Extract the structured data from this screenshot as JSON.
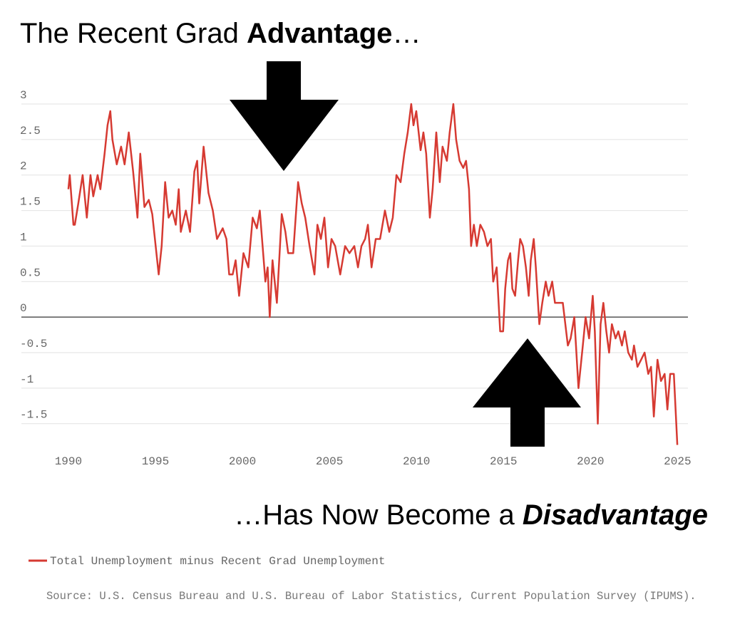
{
  "chart_data": {
    "type": "line",
    "title": [
      "The Recent Grad ",
      "Advantage",
      "…"
    ],
    "annotation": [
      "…Has Now Become a ",
      "Disadvantage"
    ],
    "source": "Source: U.S. Census Bureau and U.S. Bureau of Labor Statistics, Current Population Survey (IPUMS).",
    "xlim": [
      1987.3,
      2025.6
    ],
    "xticks": [
      1990,
      1995,
      2000,
      2005,
      2010,
      2015,
      2020,
      2025
    ],
    "ylim": [
      -1.8,
      3
    ],
    "yticks": [
      3,
      2.5,
      2,
      1.5,
      1,
      0.5,
      0,
      -0.5,
      -1,
      -1.5
    ],
    "grid": true,
    "x": [
      1990.0,
      1990.08,
      1990.29,
      1990.37,
      1990.57,
      1990.82,
      1991.06,
      1991.27,
      1991.43,
      1991.68,
      1991.84,
      1992.08,
      1992.25,
      1992.41,
      1992.53,
      1992.78,
      1993.03,
      1993.23,
      1993.47,
      1993.72,
      1993.97,
      1994.13,
      1994.37,
      1994.62,
      1994.82,
      1995.19,
      1995.36,
      1995.56,
      1995.76,
      1995.97,
      1996.17,
      1996.34,
      1996.46,
      1996.75,
      1996.99,
      1997.24,
      1997.4,
      1997.52,
      1997.77,
      1998.05,
      1998.3,
      1998.54,
      1998.87,
      1999.08,
      1999.24,
      1999.44,
      1999.61,
      1999.81,
      2000.06,
      2000.34,
      2000.59,
      2000.83,
      2001.0,
      2001.16,
      2001.32,
      2001.45,
      2001.57,
      2001.73,
      2001.98,
      2002.26,
      2002.47,
      2002.63,
      2002.92,
      2003.2,
      2003.41,
      2003.61,
      2003.86,
      2004.14,
      2004.31,
      2004.51,
      2004.71,
      2004.92,
      2005.12,
      2005.33,
      2005.62,
      2005.9,
      2006.15,
      2006.43,
      2006.64,
      2006.84,
      2007.05,
      2007.21,
      2007.42,
      2007.66,
      2007.91,
      2008.19,
      2008.44,
      2008.64,
      2008.85,
      2009.09,
      2009.3,
      2009.5,
      2009.7,
      2009.83,
      2009.99,
      2010.24,
      2010.4,
      2010.56,
      2010.77,
      2010.93,
      2011.14,
      2011.34,
      2011.5,
      2011.75,
      2011.91,
      2012.12,
      2012.28,
      2012.48,
      2012.69,
      2012.85,
      2013.02,
      2013.14,
      2013.3,
      2013.47,
      2013.67,
      2013.88,
      2014.08,
      2014.28,
      2014.41,
      2014.61,
      2014.81,
      2014.98,
      2015.1,
      2015.26,
      2015.39,
      2015.51,
      2015.67,
      2015.84,
      2015.96,
      2016.12,
      2016.29,
      2016.45,
      2016.57,
      2016.74,
      2016.86,
      2017.06,
      2017.23,
      2017.43,
      2017.59,
      2017.8,
      2017.96,
      2018.17,
      2018.41,
      2018.7,
      2018.86,
      2019.07,
      2019.31,
      2019.56,
      2019.72,
      2019.92,
      2020.13,
      2020.25,
      2020.42,
      2020.58,
      2020.74,
      2020.91,
      2021.07,
      2021.23,
      2021.44,
      2021.6,
      2021.81,
      2021.97,
      2022.17,
      2022.38,
      2022.5,
      2022.7,
      2022.91,
      2023.11,
      2023.32,
      2023.48,
      2023.64,
      2023.85,
      2024.05,
      2024.26,
      2024.42,
      2024.58,
      2024.79,
      2024.99
    ],
    "series": [
      {
        "name": "Total Unemployment minus Recent Grad Unemployment",
        "color": "#d63a32",
        "values": [
          1.8,
          2.0,
          1.3,
          1.3,
          1.6,
          2.0,
          1.4,
          2.0,
          1.7,
          2.0,
          1.8,
          2.3,
          2.7,
          2.9,
          2.5,
          2.15,
          2.4,
          2.15,
          2.6,
          2.05,
          1.4,
          2.3,
          1.55,
          1.65,
          1.45,
          0.6,
          1.0,
          1.9,
          1.4,
          1.5,
          1.3,
          1.8,
          1.2,
          1.5,
          1.2,
          2.05,
          2.2,
          1.6,
          2.4,
          1.75,
          1.5,
          1.1,
          1.25,
          1.1,
          0.6,
          0.6,
          0.8,
          0.3,
          0.9,
          0.7,
          1.4,
          1.25,
          1.5,
          1.0,
          0.5,
          0.7,
          0.0,
          0.8,
          0.2,
          1.45,
          1.2,
          0.9,
          0.9,
          1.9,
          1.6,
          1.4,
          1.0,
          0.6,
          1.3,
          1.1,
          1.4,
          0.7,
          1.1,
          1.0,
          0.6,
          1.0,
          0.9,
          1.0,
          0.7,
          1.0,
          1.1,
          1.3,
          0.7,
          1.1,
          1.1,
          1.5,
          1.2,
          1.4,
          2.0,
          1.9,
          2.3,
          2.6,
          3.0,
          2.7,
          2.9,
          2.35,
          2.6,
          2.3,
          1.4,
          1.8,
          2.6,
          1.9,
          2.4,
          2.2,
          2.6,
          3.0,
          2.5,
          2.2,
          2.1,
          2.2,
          1.8,
          1.0,
          1.3,
          1.0,
          1.3,
          1.2,
          1.0,
          1.1,
          0.5,
          0.7,
          -0.2,
          -0.2,
          0.4,
          0.8,
          0.9,
          0.4,
          0.3,
          0.8,
          1.1,
          1.0,
          0.7,
          0.3,
          0.8,
          1.1,
          0.7,
          -0.1,
          0.2,
          0.5,
          0.3,
          0.5,
          0.2,
          0.2,
          0.2,
          -0.4,
          -0.3,
          0.0,
          -1.0,
          -0.4,
          0.0,
          -0.3,
          0.3,
          -0.2,
          -1.5,
          -0.1,
          0.2,
          -0.2,
          -0.5,
          -0.1,
          -0.3,
          -0.2,
          -0.4,
          -0.2,
          -0.5,
          -0.6,
          -0.4,
          -0.7,
          -0.6,
          -0.5,
          -0.8,
          -0.7,
          -1.4,
          -0.6,
          -0.9,
          -0.8,
          -1.3,
          -0.8,
          -0.8,
          -1.8
        ]
      }
    ]
  }
}
